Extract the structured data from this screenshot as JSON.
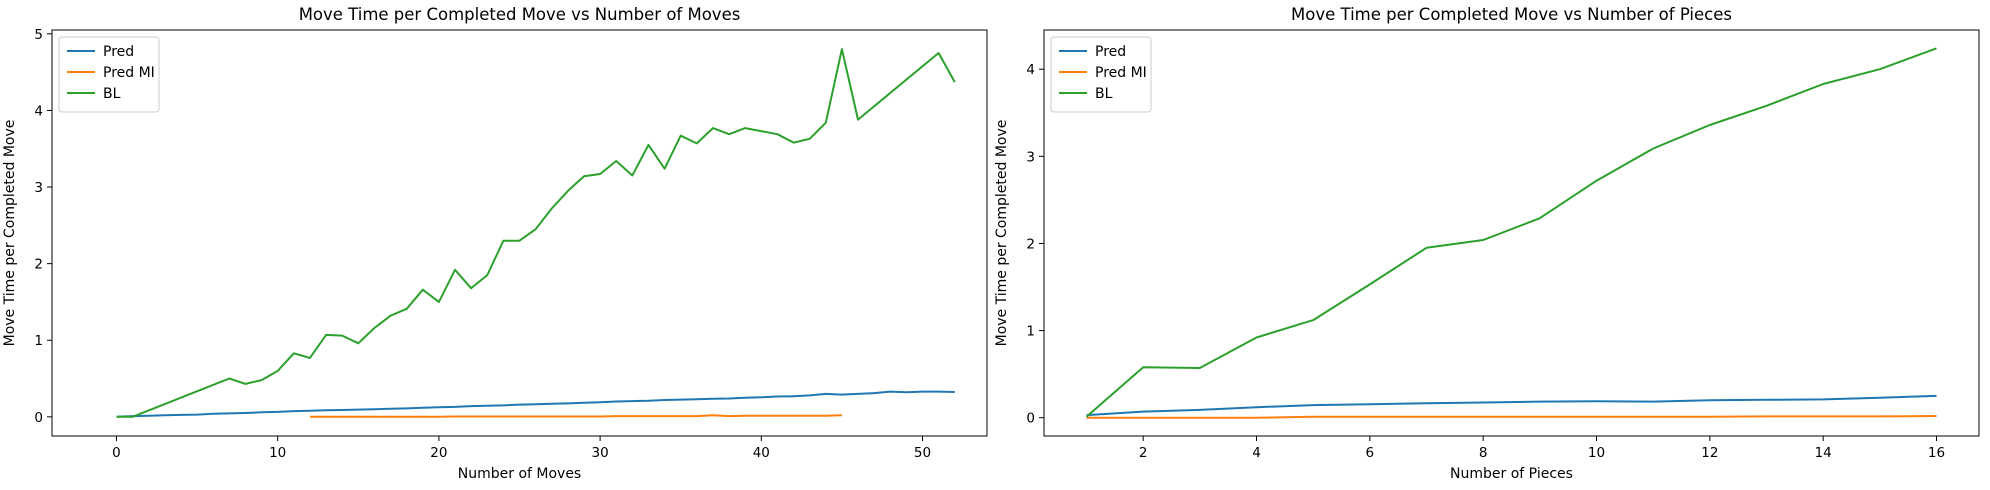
{
  "chart_data": [
    {
      "type": "line",
      "title": "Move Time per Completed Move vs Number of Moves",
      "xlabel": "Number of Moves",
      "ylabel": "Move Time per Completed Move",
      "xlim": [
        -4,
        54
      ],
      "ylim": [
        -0.25,
        5.05
      ],
      "xticks": [
        0,
        10,
        20,
        30,
        40,
        50
      ],
      "yticks": [
        0,
        1,
        2,
        3,
        4,
        5
      ],
      "grid": false,
      "legend": "top-left",
      "series": [
        {
          "name": "Pred",
          "color": "#1f77b4",
          "x": [
            0,
            1,
            2,
            3,
            4,
            5,
            6,
            7,
            8,
            9,
            10,
            11,
            12,
            13,
            14,
            15,
            16,
            17,
            18,
            19,
            20,
            21,
            22,
            23,
            24,
            25,
            26,
            27,
            28,
            29,
            30,
            31,
            32,
            33,
            34,
            35,
            36,
            37,
            38,
            39,
            40,
            41,
            42,
            43,
            44,
            45,
            46,
            47,
            48,
            49,
            50,
            51,
            52
          ],
          "y": [
            0.0,
            0.01,
            0.015,
            0.02,
            0.025,
            0.03,
            0.04,
            0.045,
            0.05,
            0.06,
            0.065,
            0.075,
            0.08,
            0.085,
            0.09,
            0.095,
            0.1,
            0.105,
            0.11,
            0.12,
            0.125,
            0.13,
            0.14,
            0.145,
            0.15,
            0.16,
            0.165,
            0.17,
            0.175,
            0.185,
            0.19,
            0.2,
            0.205,
            0.21,
            0.22,
            0.225,
            0.23,
            0.235,
            0.24,
            0.25,
            0.255,
            0.265,
            0.27,
            0.28,
            0.3,
            0.29,
            0.3,
            0.31,
            0.33,
            0.32,
            0.33,
            0.33,
            0.325
          ]
        },
        {
          "name": "Pred MI",
          "color": "#ff7f0e",
          "x": [
            12,
            13,
            14,
            15,
            16,
            17,
            18,
            19,
            20,
            21,
            22,
            23,
            24,
            25,
            26,
            27,
            28,
            29,
            30,
            31,
            32,
            33,
            34,
            35,
            36,
            37,
            38,
            39,
            40,
            41,
            42,
            43,
            44,
            45
          ],
          "y": [
            0.0,
            0.0,
            0.0,
            0.0,
            0.0,
            0.0,
            0.0,
            0.0,
            0.0,
            0.005,
            0.005,
            0.005,
            0.005,
            0.005,
            0.005,
            0.005,
            0.005,
            0.005,
            0.005,
            0.01,
            0.01,
            0.01,
            0.01,
            0.01,
            0.01,
            0.02,
            0.01,
            0.015,
            0.015,
            0.015,
            0.015,
            0.015,
            0.015,
            0.02
          ]
        },
        {
          "name": "BL",
          "color": "#2ca02c",
          "x": [
            0,
            1,
            7,
            8,
            9,
            10,
            11,
            12,
            13,
            14,
            15,
            16,
            17,
            18,
            19,
            20,
            21,
            22,
            23,
            24,
            25,
            26,
            27,
            28,
            29,
            30,
            31,
            32,
            33,
            34,
            35,
            36,
            37,
            38,
            39,
            41,
            42,
            43,
            44,
            45,
            46,
            51,
            52
          ],
          "y": [
            0.0,
            0.0,
            0.5,
            0.43,
            0.48,
            0.6,
            0.83,
            0.77,
            1.07,
            1.06,
            0.96,
            1.16,
            1.32,
            1.41,
            1.66,
            1.5,
            1.92,
            1.68,
            1.85,
            2.3,
            2.3,
            2.45,
            2.72,
            2.95,
            3.14,
            3.17,
            3.34,
            3.15,
            3.55,
            3.24,
            3.67,
            3.57,
            3.77,
            3.69,
            3.77,
            3.69,
            3.58,
            3.63,
            3.84,
            4.8,
            3.88,
            4.75,
            4.37
          ]
        }
      ]
    },
    {
      "type": "line",
      "title": "Move Time per Completed Move vs Number of Pieces",
      "xlabel": "Number of Pieces",
      "ylabel": "Move Time per Completed Move",
      "xlim": [
        0.25,
        16.75
      ],
      "ylim": [
        -0.21,
        4.45
      ],
      "xticks": [
        2,
        4,
        6,
        8,
        10,
        12,
        14,
        16
      ],
      "yticks": [
        0,
        1,
        2,
        3,
        4
      ],
      "grid": false,
      "legend": "top-left",
      "series": [
        {
          "name": "Pred",
          "color": "#1f77b4",
          "x": [
            1,
            2,
            3,
            4,
            5,
            6,
            7,
            8,
            9,
            10,
            11,
            12,
            13,
            14,
            15,
            16
          ],
          "y": [
            0.03,
            0.07,
            0.09,
            0.12,
            0.145,
            0.155,
            0.165,
            0.175,
            0.185,
            0.19,
            0.185,
            0.2,
            0.205,
            0.21,
            0.23,
            0.25
          ]
        },
        {
          "name": "Pred MI",
          "color": "#ff7f0e",
          "x": [
            1,
            2,
            3,
            4,
            5,
            6,
            7,
            8,
            9,
            10,
            11,
            12,
            13,
            14,
            15,
            16
          ],
          "y": [
            0.0,
            0.0,
            0.0,
            0.0,
            0.01,
            0.01,
            0.01,
            0.01,
            0.01,
            0.01,
            0.01,
            0.01,
            0.015,
            0.015,
            0.015,
            0.02
          ]
        },
        {
          "name": "BL",
          "color": "#2ca02c",
          "x": [
            1,
            2,
            3,
            4,
            5,
            6,
            7,
            8,
            9,
            10,
            11,
            12,
            13,
            14,
            15,
            16
          ],
          "y": [
            0.01,
            0.58,
            0.57,
            0.92,
            1.12,
            1.53,
            1.95,
            2.04,
            2.29,
            2.72,
            3.09,
            3.36,
            3.58,
            3.83,
            4.0,
            4.24
          ]
        }
      ]
    }
  ]
}
